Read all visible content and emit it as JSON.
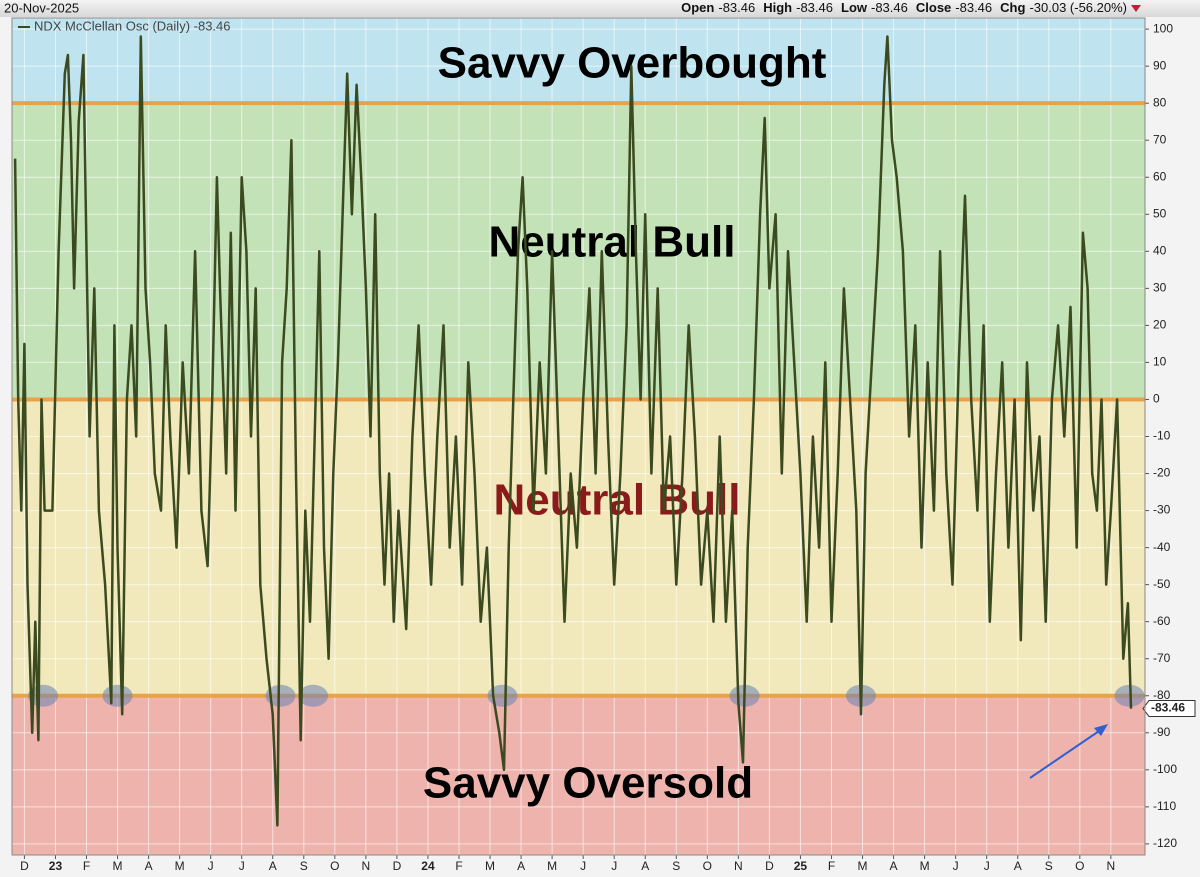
{
  "chart_data": {
    "type": "line",
    "header": {
      "date": "20-Nov-2025",
      "quote": [
        [
          "Open",
          "-83.46"
        ],
        [
          "High",
          "-83.46"
        ],
        [
          "Low",
          "-83.46"
        ],
        [
          "Close",
          "-83.46"
        ],
        [
          "Chg",
          "-30.03 (-56.20%)"
        ]
      ]
    },
    "series": [
      {
        "name": "NDX McClellan Osc (Daily) -83.46",
        "color": "#3b4a1f",
        "x": [
          -0.3,
          -0.2,
          -0.1,
          0,
          0.1,
          0.25,
          0.35,
          0.45,
          0.55,
          0.65,
          0.9,
          1.1,
          1.3,
          1.4,
          1.5,
          1.6,
          1.75,
          1.9,
          2.0,
          2.1,
          2.25,
          2.4,
          2.6,
          2.8,
          2.9,
          3.0,
          3.15,
          3.3,
          3.45,
          3.6,
          3.75,
          3.9,
          4.05,
          4.2,
          4.4,
          4.55,
          4.7,
          4.9,
          5.1,
          5.3,
          5.5,
          5.7,
          5.9,
          6.05,
          6.2,
          6.3,
          6.5,
          6.65,
          6.8,
          7.0,
          7.15,
          7.3,
          7.45,
          7.6,
          7.8,
          8.0,
          8.15,
          8.3,
          8.45,
          8.6,
          8.75,
          8.9,
          9.05,
          9.2,
          9.35,
          9.5,
          9.65,
          9.8,
          9.95,
          10.1,
          10.25,
          10.4,
          10.55,
          10.7,
          10.85,
          11.0,
          11.15,
          11.3,
          11.45,
          11.6,
          11.75,
          11.9,
          12.05,
          12.3,
          12.5,
          12.7,
          12.9,
          13.1,
          13.3,
          13.5,
          13.7,
          13.9,
          14.1,
          14.3,
          14.5,
          14.7,
          14.9,
          15.1,
          15.3,
          15.45,
          15.6,
          15.75,
          15.9,
          16.05,
          16.2,
          16.4,
          16.6,
          16.8,
          17.0,
          17.2,
          17.4,
          17.6,
          17.8,
          18.0,
          18.2,
          18.4,
          18.6,
          18.8,
          19.0,
          19.2,
          19.4,
          19.55,
          19.7,
          19.85,
          20.0,
          20.2,
          20.4,
          20.6,
          20.8,
          21.0,
          21.2,
          21.4,
          21.6,
          21.8,
          22.0,
          22.2,
          22.4,
          22.6,
          22.8,
          23.0,
          23.15,
          23.3,
          23.5,
          23.7,
          23.85,
          24.0,
          24.2,
          24.4,
          24.6,
          24.8,
          25.0,
          25.2,
          25.4,
          25.6,
          25.8,
          26.0,
          26.2,
          26.4,
          26.6,
          26.8,
          26.95,
          27.1,
          27.3,
          27.5,
          27.7,
          27.8,
          27.95,
          28.1,
          28.3,
          28.5,
          28.7,
          28.9,
          29.1,
          29.3,
          29.5,
          29.7,
          29.9,
          30.1,
          30.3,
          30.5,
          30.7,
          30.9,
          31.1,
          31.3,
          31.5,
          31.7,
          31.9,
          32.1,
          32.3,
          32.5,
          32.7,
          32.9,
          33.1,
          33.3,
          33.5,
          33.7,
          33.9,
          34.1,
          34.25,
          34.4,
          34.55,
          34.7,
          34.85,
          35.0,
          35.2,
          35.4,
          35.55,
          35.65
        ],
        "values": [
          65,
          0,
          -30,
          15,
          -50,
          -90,
          -60,
          -92,
          0,
          -30,
          -30,
          40,
          88,
          93,
          70,
          30,
          75,
          93,
          40,
          -10,
          30,
          -30,
          -50,
          -82,
          20,
          -40,
          -85,
          0,
          20,
          -10,
          98,
          30,
          10,
          -20,
          -30,
          20,
          -10,
          -40,
          10,
          -20,
          40,
          -30,
          -45,
          0,
          60,
          30,
          -20,
          45,
          -30,
          60,
          40,
          -10,
          30,
          -50,
          -70,
          -85,
          -115,
          10,
          30,
          70,
          -20,
          -92,
          -30,
          -60,
          -10,
          40,
          -40,
          -70,
          -20,
          10,
          50,
          88,
          50,
          85,
          60,
          30,
          -10,
          50,
          -20,
          -50,
          -20,
          -60,
          -30,
          -62,
          -10,
          20,
          -20,
          -50,
          -10,
          20,
          -40,
          -10,
          -50,
          10,
          -20,
          -60,
          -40,
          -80,
          -90,
          -100,
          -40,
          0,
          40,
          60,
          30,
          -30,
          10,
          -20,
          40,
          -10,
          -60,
          -20,
          -40,
          0,
          30,
          -20,
          40,
          -10,
          -50,
          -20,
          20,
          90,
          40,
          0,
          50,
          -20,
          30,
          -30,
          -10,
          -50,
          -20,
          20,
          -10,
          -50,
          -30,
          -60,
          -10,
          -60,
          -30,
          -82,
          -98,
          -40,
          0,
          50,
          76,
          30,
          50,
          -20,
          40,
          10,
          -20,
          -60,
          -10,
          -40,
          10,
          -60,
          -20,
          30,
          0,
          -30,
          -85,
          -20,
          10,
          40,
          85,
          98,
          70,
          60,
          40,
          -10,
          20,
          -40,
          10,
          -30,
          40,
          -20,
          -50,
          10,
          55,
          0,
          -30,
          20,
          -60,
          -20,
          10,
          -40,
          0,
          -65,
          10,
          -30,
          -10,
          -60,
          0,
          20,
          -10,
          25,
          -40,
          45,
          30,
          -20,
          -30,
          0,
          -50,
          -30,
          0,
          -70,
          -55,
          -83.46
        ],
        "last_value_label": "-83.46"
      }
    ],
    "xlim": [
      -0.4,
      36.1
    ],
    "xticks": [
      {
        "value": 0,
        "label": "D"
      },
      {
        "value": 1,
        "label": "23"
      },
      {
        "value": 2,
        "label": "F"
      },
      {
        "value": 3,
        "label": "M"
      },
      {
        "value": 4,
        "label": "A"
      },
      {
        "value": 5,
        "label": "M"
      },
      {
        "value": 6,
        "label": "J"
      },
      {
        "value": 7,
        "label": "J"
      },
      {
        "value": 8,
        "label": "A"
      },
      {
        "value": 9,
        "label": "S"
      },
      {
        "value": 10,
        "label": "O"
      },
      {
        "value": 11,
        "label": "N"
      },
      {
        "value": 12,
        "label": "D"
      },
      {
        "value": 13,
        "label": "24"
      },
      {
        "value": 14,
        "label": "F"
      },
      {
        "value": 15,
        "label": "M"
      },
      {
        "value": 16,
        "label": "A"
      },
      {
        "value": 17,
        "label": "M"
      },
      {
        "value": 18,
        "label": "J"
      },
      {
        "value": 19,
        "label": "J"
      },
      {
        "value": 20,
        "label": "A"
      },
      {
        "value": 21,
        "label": "S"
      },
      {
        "value": 22,
        "label": "O"
      },
      {
        "value": 23,
        "label": "N"
      },
      {
        "value": 24,
        "label": "D"
      },
      {
        "value": 25,
        "label": "25"
      },
      {
        "value": 26,
        "label": "F"
      },
      {
        "value": 27,
        "label": "M"
      },
      {
        "value": 28,
        "label": "A"
      },
      {
        "value": 29,
        "label": "M"
      },
      {
        "value": 30,
        "label": "J"
      },
      {
        "value": 31,
        "label": "J"
      },
      {
        "value": 32,
        "label": "A"
      },
      {
        "value": 33,
        "label": "S"
      },
      {
        "value": 34,
        "label": "O"
      },
      {
        "value": 35,
        "label": "N"
      }
    ],
    "ylim": [
      -123,
      103
    ],
    "yticks": [
      100,
      90,
      80,
      70,
      60,
      50,
      40,
      30,
      20,
      10,
      0,
      -10,
      -20,
      -30,
      -40,
      -50,
      -60,
      -70,
      -80,
      -90,
      -100,
      -110,
      -120
    ],
    "grid": true,
    "levels": [
      80,
      0,
      -80
    ],
    "level_color": "#e8a34a",
    "zone_colors": [
      "#bfe3ef",
      "#c4e2b8",
      "#f1e9bb",
      "#eeb3ad"
    ],
    "highlights": [
      0.6,
      3.0,
      8.25,
      9.3,
      15.4,
      23.2,
      26.95,
      35.6
    ],
    "annotations": [
      {
        "text": "Savvy Overbought",
        "color": "#000000"
      },
      {
        "text": "Neutral Bull",
        "color": "#000000"
      },
      {
        "text": "Neutral Bull",
        "color": "#8b1a1a"
      },
      {
        "text": "Savvy Oversold",
        "color": "#000000"
      }
    ]
  }
}
